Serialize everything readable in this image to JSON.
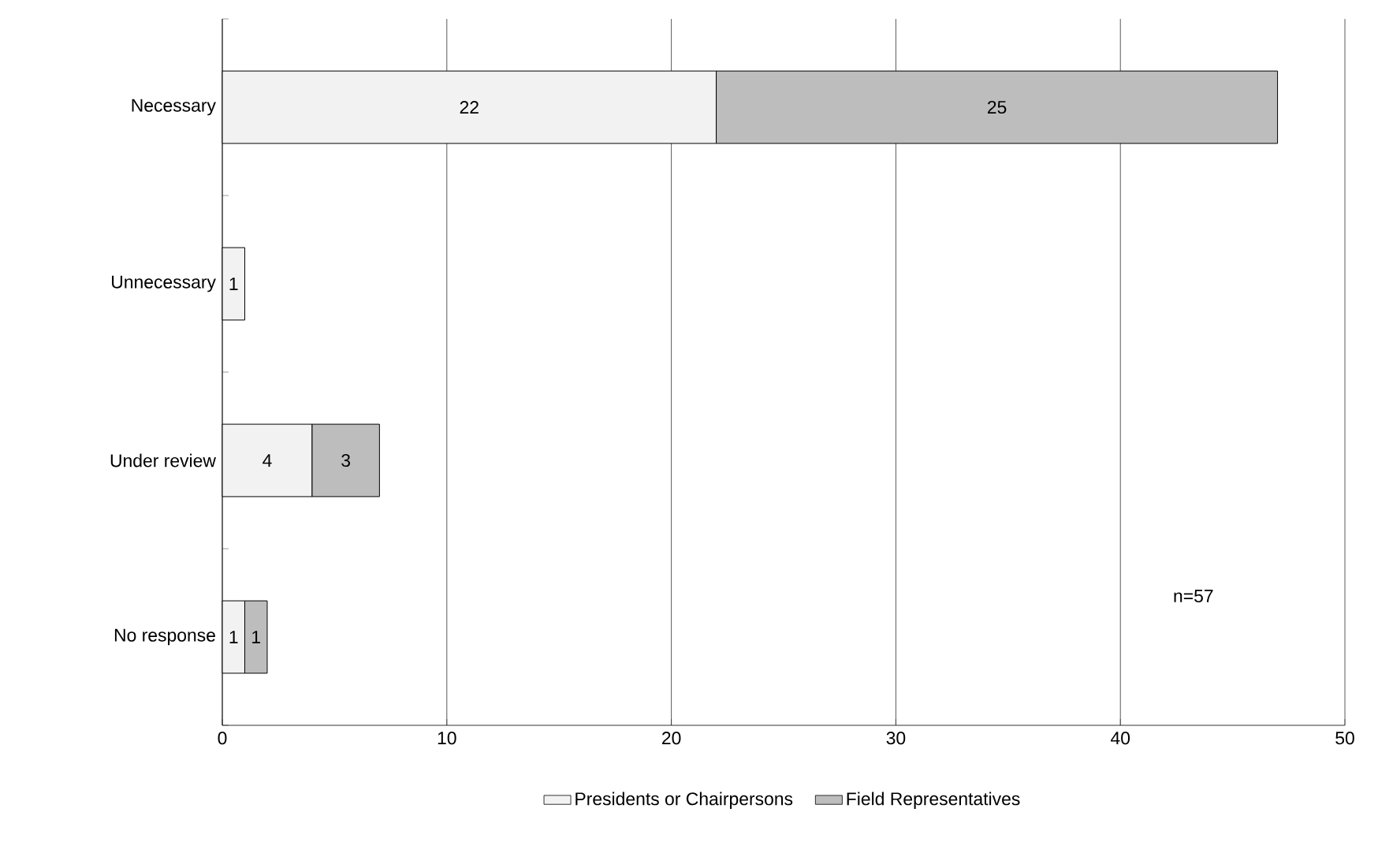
{
  "chart_data": {
    "type": "bar",
    "orientation": "horizontal",
    "stacked": true,
    "categories": [
      "Necessary",
      "Unnecessary",
      "Under review",
      "No response"
    ],
    "series": [
      {
        "name": "Presidents or Chairpersons",
        "color": "#f2f2f2",
        "values": [
          22,
          1,
          4,
          1
        ]
      },
      {
        "name": "Field Representatives",
        "color": "#bdbdbd",
        "values": [
          25,
          null,
          3,
          1
        ]
      }
    ],
    "xlim": [
      0,
      50
    ],
    "xticks": [
      0,
      10,
      20,
      30,
      40,
      50
    ],
    "grid": "x",
    "legend": "bottom",
    "data_labels": true,
    "annotations": [
      "n=57"
    ]
  }
}
